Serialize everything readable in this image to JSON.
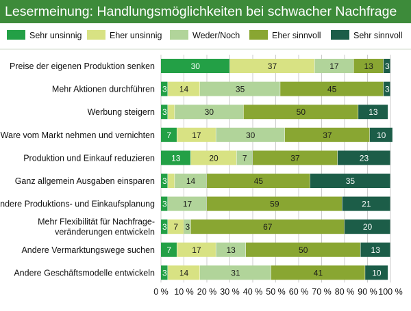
{
  "header": {
    "title": "Lesermeinung: Handlungsmöglichkeiten bei schwacher Nachfrage"
  },
  "chart_data": {
    "type": "bar",
    "orientation": "horizontal",
    "stacked": true,
    "title": "Lesermeinung: Handlungsmöglichkeiten bei schwacher Nachfrage",
    "categories": [
      "Preise der eigenen Produktion senken",
      "Mehr Aktionen durchführen",
      "Werbung steigern",
      "Ware vom Markt nehmen und vernichten",
      "Produktion und Einkauf reduzieren",
      "Ganz allgemein Ausgaben einsparen",
      "Andere Produktions- und Einkaufsplanung",
      "Mehr Flexibilität für Nachfrage-veränderungen entwickeln",
      "Andere Vermarktungswege suchen",
      "Andere Geschäftsmodelle entwickeln"
    ],
    "category_lines": [
      [
        "Preise der eigenen Produktion senken"
      ],
      [
        "Mehr Aktionen durchführen"
      ],
      [
        "Werbung steigern"
      ],
      [
        "Ware vom Markt nehmen und vernichten"
      ],
      [
        "Produktion und Einkauf reduzieren"
      ],
      [
        "Ganz allgemein Ausgaben einsparen"
      ],
      [
        "Andere Produktions- und Einkaufsplanung"
      ],
      [
        "Mehr Flexibilität für Nachfrage-",
        "veränderungen entwickeln"
      ],
      [
        "Andere Vermarktungswege suchen"
      ],
      [
        "Andere Geschäftsmodelle entwickeln"
      ]
    ],
    "series": [
      {
        "name": "Sehr unsinnig",
        "color": "#23a046",
        "labels": [
          "30",
          "3",
          "3",
          "7",
          "13",
          "3",
          "3",
          "3",
          "7",
          "3"
        ],
        "values": [
          30,
          3,
          3,
          7,
          13,
          3,
          3,
          3,
          7,
          3
        ]
      },
      {
        "name": "Eher unsinnig",
        "color": "#d8e283",
        "labels": [
          "37",
          "14",
          "",
          "17",
          "20",
          "",
          "",
          "7",
          "17",
          "14"
        ],
        "values": [
          37,
          14,
          3,
          17,
          20,
          3,
          0,
          7,
          17,
          14
        ]
      },
      {
        "name": "Weder/Noch",
        "color": "#b1d49a",
        "labels": [
          "17",
          "35",
          "30",
          "30",
          "7",
          "14",
          "17",
          "3",
          "13",
          "31"
        ],
        "values": [
          17,
          35,
          30,
          30,
          7,
          14,
          17,
          3,
          13,
          31
        ]
      },
      {
        "name": "Eher sinnvoll",
        "color": "#89a632",
        "labels": [
          "13",
          "45",
          "50",
          "37",
          "37",
          "45",
          "59",
          "67",
          "50",
          "41"
        ],
        "values": [
          13,
          45,
          50,
          37,
          37,
          45,
          59,
          67,
          50,
          41
        ]
      },
      {
        "name": "Sehr sinnvoll",
        "color": "#1c5d48",
        "labels": [
          "3",
          "3",
          "13",
          "10",
          "23",
          "35",
          "21",
          "20",
          "13",
          "10"
        ],
        "values": [
          3,
          3,
          13,
          10,
          23,
          35,
          21,
          20,
          13,
          10
        ]
      }
    ],
    "xlim": [
      0,
      100
    ],
    "x_ticks": [
      "0 %",
      "10 %",
      "20 %",
      "30 %",
      "40 %",
      "50 %",
      "60 %",
      "70 %",
      "80 %",
      "90 %",
      "100 %"
    ],
    "grid": "vertical",
    "legend_position": "top"
  }
}
